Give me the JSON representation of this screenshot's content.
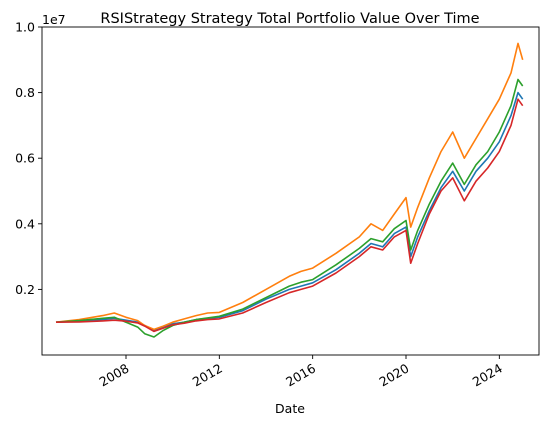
{
  "chart_data": {
    "type": "line",
    "title": "RSIStrategy Strategy Total Portfolio Value Over Time",
    "xlabel": "Date",
    "ylabel": "",
    "y_offset_label": "1e7",
    "xlim": [
      2004.4,
      2025.7
    ],
    "ylim": [
      0.0,
      1.0
    ],
    "x_ticks": [
      2008,
      2012,
      2016,
      2020,
      2024
    ],
    "x_tick_labels": [
      "2008",
      "2012",
      "2016",
      "2020",
      "2024"
    ],
    "y_ticks": [
      0.2,
      0.4,
      0.6,
      0.8,
      1.0
    ],
    "y_tick_labels": [
      "0.2",
      "0.4",
      "0.6",
      "0.8",
      "1.0"
    ],
    "grid": false,
    "legend": null,
    "x": [
      2005.0,
      2006.0,
      2007.0,
      2007.5,
      2008.0,
      2008.5,
      2008.8,
      2009.2,
      2009.6,
      2010.0,
      2010.5,
      2011.0,
      2011.5,
      2012.0,
      2013.0,
      2014.0,
      2015.0,
      2015.5,
      2016.0,
      2017.0,
      2018.0,
      2018.5,
      2019.0,
      2019.5,
      2020.0,
      2020.2,
      2020.5,
      2021.0,
      2021.5,
      2022.0,
      2022.5,
      2023.0,
      2023.5,
      2024.0,
      2024.5,
      2024.8,
      2025.0
    ],
    "series": [
      {
        "color": "#1f77b4",
        "values": [
          0.1,
          0.103,
          0.108,
          0.112,
          0.106,
          0.1,
          0.09,
          0.075,
          0.085,
          0.095,
          0.1,
          0.108,
          0.112,
          0.115,
          0.135,
          0.17,
          0.2,
          0.21,
          0.22,
          0.26,
          0.31,
          0.34,
          0.33,
          0.37,
          0.39,
          0.3,
          0.36,
          0.44,
          0.51,
          0.56,
          0.5,
          0.56,
          0.6,
          0.65,
          0.73,
          0.8,
          0.78
        ]
      },
      {
        "color": "#ff7f0e",
        "values": [
          0.1,
          0.108,
          0.12,
          0.128,
          0.115,
          0.105,
          0.09,
          0.078,
          0.088,
          0.1,
          0.11,
          0.12,
          0.128,
          0.13,
          0.16,
          0.2,
          0.24,
          0.255,
          0.265,
          0.31,
          0.36,
          0.4,
          0.38,
          0.43,
          0.48,
          0.39,
          0.45,
          0.54,
          0.62,
          0.68,
          0.6,
          0.66,
          0.72,
          0.78,
          0.86,
          0.95,
          0.9
        ]
      },
      {
        "color": "#2ca02c",
        "values": [
          0.1,
          0.105,
          0.112,
          0.115,
          0.1,
          0.085,
          0.065,
          0.055,
          0.075,
          0.09,
          0.1,
          0.108,
          0.113,
          0.118,
          0.14,
          0.175,
          0.21,
          0.222,
          0.23,
          0.275,
          0.325,
          0.355,
          0.345,
          0.385,
          0.41,
          0.32,
          0.38,
          0.46,
          0.53,
          0.585,
          0.52,
          0.58,
          0.62,
          0.68,
          0.76,
          0.84,
          0.82
        ]
      },
      {
        "color": "#d62728",
        "values": [
          0.1,
          0.101,
          0.104,
          0.106,
          0.103,
          0.098,
          0.088,
          0.072,
          0.082,
          0.092,
          0.097,
          0.104,
          0.108,
          0.11,
          0.128,
          0.16,
          0.19,
          0.2,
          0.21,
          0.25,
          0.3,
          0.33,
          0.32,
          0.36,
          0.38,
          0.28,
          0.34,
          0.43,
          0.5,
          0.54,
          0.47,
          0.53,
          0.57,
          0.62,
          0.7,
          0.78,
          0.76
        ]
      }
    ]
  }
}
